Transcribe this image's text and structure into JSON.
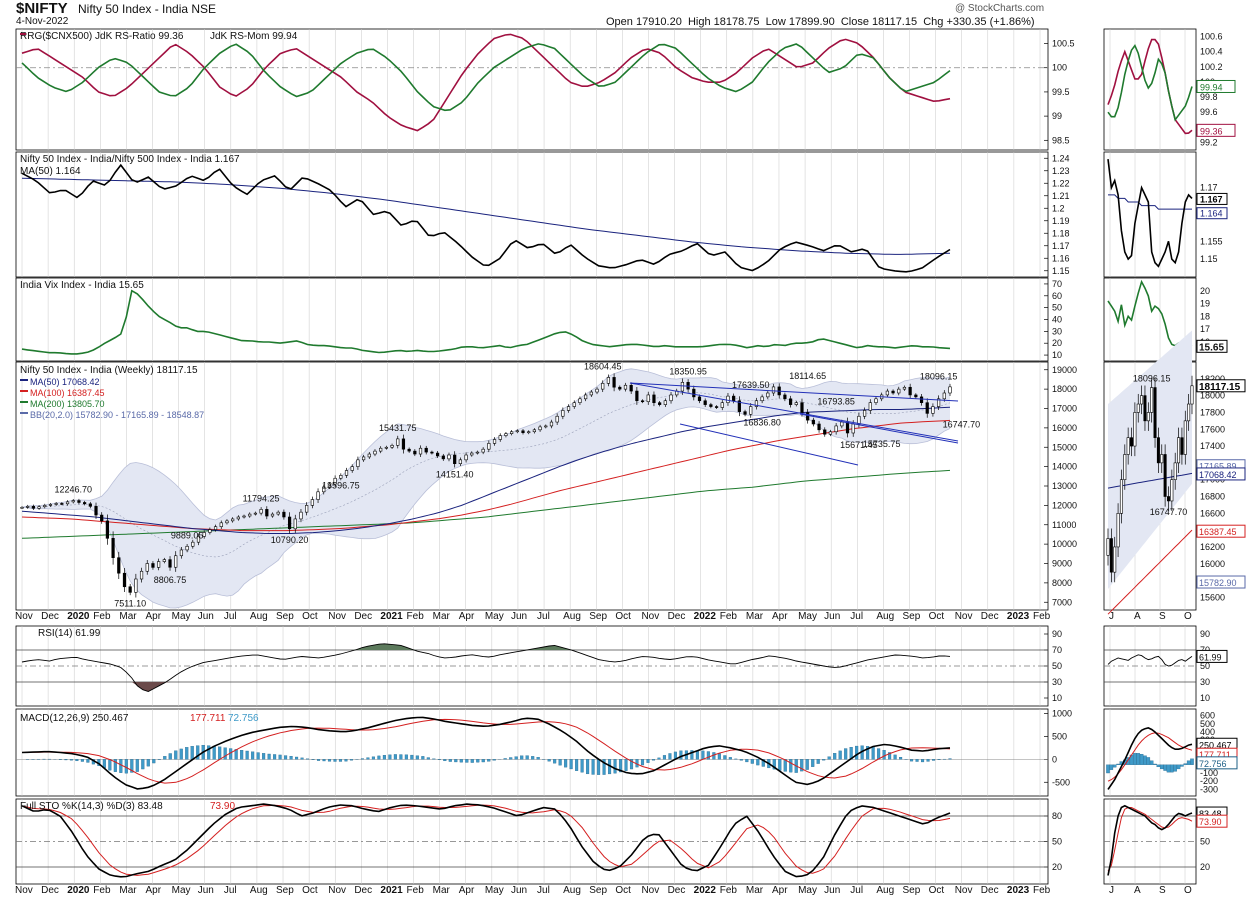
{
  "header": {
    "symbol": "$NIFTY",
    "name": "Nifty 50 Index - India NSE",
    "date": "4-Nov-2022",
    "watermark": "@ StockCharts.com",
    "ohlc": "Open 17910.20  High 18178.75  Low 17899.90  Close 18117.15  Chg +330.35 (+1.86%)"
  },
  "colors": {
    "green": "#1f7a2e",
    "crimson": "#a01040",
    "navy": "#1a237e",
    "red": "#d42020",
    "black": "#000000",
    "bb_fill": "#e3e7f3",
    "bb_line": "#b9bfd8",
    "hist": "#3f9ac8",
    "rsi_fill": "#5c7a5c",
    "rsi_low": "#6b4a4a",
    "grid": "#c8c8c8"
  },
  "chart_data": [
    {
      "type": "line",
      "panel": "rrg",
      "legend": [
        "RRG($CNX500) JdK RS-Ratio 99.36",
        "JdK RS-Mom 99.94"
      ],
      "series": [
        {
          "name": "JdK RS-Ratio",
          "last": 99.36,
          "values": [
            100.3,
            100.4,
            100.2,
            100.0,
            99.8,
            99.5,
            99.4,
            99.6,
            99.9,
            100.2,
            100.5,
            100.3,
            100.0,
            99.6,
            99.4,
            99.6,
            100.0,
            100.3,
            100.4,
            100.2,
            100.0,
            99.8,
            99.5,
            99.3,
            99.0,
            98.8,
            98.7,
            98.9,
            99.4,
            99.9,
            100.3,
            100.6,
            100.7,
            100.6,
            100.3,
            100.0,
            99.7,
            99.6,
            99.7,
            99.9,
            100.2,
            100.4,
            100.3,
            100.0,
            99.8,
            99.7,
            99.7,
            99.9,
            100.2,
            100.4,
            100.2,
            100.0,
            100.1,
            100.4,
            100.6,
            100.5,
            100.2,
            99.8,
            99.5,
            99.4,
            99.3,
            99.36
          ]
        },
        {
          "name": "JdK RS-Mom",
          "last": 99.94,
          "values": [
            100.1,
            99.8,
            99.6,
            99.5,
            99.7,
            100.0,
            100.2,
            100.1,
            99.8,
            99.5,
            99.4,
            99.6,
            100.0,
            100.3,
            100.5,
            100.3,
            99.9,
            99.6,
            99.4,
            99.5,
            99.8,
            100.1,
            100.3,
            100.4,
            100.2,
            99.9,
            99.5,
            99.2,
            99.1,
            99.3,
            99.7,
            100.0,
            100.2,
            100.4,
            100.5,
            100.4,
            100.1,
            99.8,
            99.6,
            99.7,
            100.0,
            100.3,
            100.5,
            100.4,
            100.1,
            99.8,
            99.6,
            99.5,
            99.7,
            100.1,
            100.4,
            100.5,
            100.2,
            99.9,
            100.0,
            100.3,
            100.2,
            99.8,
            99.5,
            99.6,
            99.7,
            99.94
          ]
        }
      ],
      "ticks": [
        100.5,
        100.0,
        99.5,
        99.0,
        98.5
      ],
      "ylim": [
        98.3,
        100.8
      ]
    },
    {
      "type": "line",
      "panel": "relative_strength",
      "legend": [
        "Nifty 50 Index - India/Nifty 500 Index - India 1.167",
        "MA(50) 1.164"
      ],
      "series": [
        {
          "name": "Nifty 50 Index - India/Nifty 500 Index - India",
          "last": 1.167,
          "values": [
            1.228,
            1.222,
            1.212,
            1.215,
            1.208,
            1.222,
            1.218,
            1.235,
            1.22,
            1.225,
            1.215,
            1.218,
            1.226,
            1.222,
            1.232,
            1.218,
            1.211,
            1.222,
            1.226,
            1.214,
            1.225,
            1.22,
            1.214,
            1.201,
            1.208,
            1.195,
            1.198,
            1.186,
            1.191,
            1.177,
            1.181,
            1.172,
            1.161,
            1.153,
            1.16,
            1.175,
            1.168,
            1.172,
            1.163,
            1.171,
            1.161,
            1.154,
            1.152,
            1.155,
            1.159,
            1.155,
            1.163,
            1.166,
            1.172,
            1.162,
            1.165,
            1.153,
            1.15,
            1.157,
            1.168,
            1.173,
            1.17,
            1.166,
            1.171,
            1.165,
            1.168,
            1.152,
            1.15,
            1.149,
            1.152,
            1.16,
            1.167
          ]
        },
        {
          "name": "MA(50)",
          "last": 1.164,
          "values": [
            1.224,
            1.223,
            1.222,
            1.221,
            1.219,
            1.216,
            1.212,
            1.207,
            1.201,
            1.195,
            1.189,
            1.183,
            1.178,
            1.173,
            1.169,
            1.166,
            1.164,
            1.163,
            1.164
          ]
        }
      ],
      "ticks": [
        1.24,
        1.23,
        1.22,
        1.21,
        1.2,
        1.19,
        1.18,
        1.17,
        1.16,
        1.15
      ],
      "ylim": [
        1.145,
        1.245
      ]
    },
    {
      "type": "line",
      "panel": "vix",
      "legend": [
        "India Vix Index - India 15.65"
      ],
      "series": [
        {
          "name": "India Vix Index - India",
          "last": 15.65,
          "values": [
            15,
            14,
            13,
            12,
            12,
            11,
            11,
            12,
            15,
            20,
            24,
            29,
            66,
            58,
            49,
            42,
            38,
            33,
            33,
            30,
            30,
            28,
            26,
            24,
            22,
            22,
            21,
            21,
            20,
            21,
            22,
            19,
            18,
            18,
            17,
            16,
            16,
            14,
            13,
            12,
            13,
            14,
            13,
            14,
            13,
            13,
            14,
            15,
            17,
            17,
            16,
            17,
            18,
            16,
            18,
            19,
            22,
            25,
            28,
            30,
            27,
            22,
            19,
            18,
            17,
            18,
            19,
            19,
            18,
            17,
            18,
            17,
            17,
            17,
            17,
            18,
            19,
            19,
            18,
            16,
            18,
            17,
            19,
            18,
            20,
            20,
            21,
            24,
            22,
            20,
            18,
            16,
            18,
            17,
            17,
            16,
            17,
            18,
            17,
            17,
            16,
            15.65
          ]
        }
      ],
      "ticks": [
        70,
        60,
        50,
        40,
        30,
        20,
        10
      ],
      "ylim": [
        5,
        75
      ]
    },
    {
      "type": "candlestick",
      "panel": "price",
      "legend": [
        "Nifty 50 Index - India (Weekly) 18117.15",
        "MA(50) 17068.42",
        "MA(100) 16387.45",
        "MA(200) 13805.70",
        "BB(20,2.0) 15782.90 - 17165.89 - 18548.87"
      ],
      "closes": [
        11900,
        11950,
        11850,
        11930,
        12000,
        12050,
        12100,
        12080,
        12180,
        12246.7,
        12150,
        12080,
        11950,
        11500,
        11200,
        10300,
        9300,
        8500,
        7800,
        7511.1,
        8200,
        8600,
        9000,
        8800,
        9100,
        9200,
        8806.75,
        9400,
        9700,
        9889.05,
        10100,
        10400,
        10600,
        10750,
        10900,
        11100,
        11200,
        11300,
        11400,
        11450,
        11550,
        11600,
        11794.25,
        11450,
        11550,
        11650,
        11400,
        10790.2,
        11300,
        11650,
        12000,
        12300,
        12700,
        12950,
        13100,
        13400,
        13550,
        13800,
        14000,
        14350,
        14500,
        14650,
        14800,
        14950,
        15000,
        15100,
        15431.75,
        14900,
        14800,
        14650,
        14950,
        14750,
        14700,
        14550,
        14400,
        14600,
        14151.4,
        14350,
        14600,
        14700,
        14750,
        14900,
        15200,
        15400,
        15600,
        15700,
        15800,
        15850,
        15750,
        15800,
        15900,
        16050,
        16100,
        16300,
        16600,
        16900,
        17100,
        17300,
        17500,
        17700,
        17850,
        18000,
        18300,
        18604.45,
        18100,
        18000,
        18200,
        17900,
        17400,
        17350,
        17700,
        17300,
        17200,
        17400,
        17700,
        17900,
        18350.95,
        18000,
        17600,
        17400,
        17200,
        17100,
        17050,
        17300,
        17639.5,
        17400,
        16836.8,
        16700,
        17100,
        17400,
        17600,
        17800,
        18114.65,
        17700,
        17500,
        17200,
        17300,
        16793.85,
        16400,
        16200,
        15900,
        15671.45,
        15800,
        16100,
        16300,
        15735.75,
        16200,
        16600,
        16900,
        17300,
        17500,
        17700,
        17900,
        17800,
        18000,
        18096.15,
        17700,
        17600,
        17300,
        16747.7,
        17100,
        17500,
        17800,
        18117.15
      ],
      "labels": [
        "12246.70",
        "7511.10",
        "8806.75",
        "9889.05",
        "11794.25",
        "10790.20",
        "13596.75",
        "15431.75",
        "14151.40",
        "18604.45",
        "17639.50",
        "18350.95",
        "16836.80",
        "18114.65",
        "16793.85",
        "15671.45",
        "15735.75",
        "18096.15",
        "16747.70"
      ],
      "ma50": {
        "name": "MA(50)",
        "last": 17068.42
      },
      "ma100": {
        "name": "MA(100)",
        "last": 16387.45
      },
      "ma200": {
        "name": "MA(200)",
        "last": 13805.7
      },
      "bb": {
        "name": "BB(20,2.0)",
        "lower": 15782.9,
        "mid": 17165.89,
        "upper": 18548.87
      },
      "ticks": [
        19000,
        18000,
        17000,
        16000,
        15000,
        14000,
        13000,
        12000,
        11000,
        10000,
        9000,
        8000,
        7000
      ],
      "ylim": [
        6600,
        19400
      ]
    },
    {
      "type": "line",
      "panel": "rsi",
      "legend": [
        "RSI(14) 61.99"
      ],
      "series": [
        {
          "name": "RSI(14)",
          "last": 61.99
        }
      ],
      "ticks": [
        90,
        70,
        50,
        30,
        10
      ],
      "levels": [
        70,
        50,
        30
      ],
      "ylim": [
        0,
        100
      ]
    },
    {
      "type": "line",
      "panel": "macd",
      "legend": [
        "MACD(12,26,9) 250.467",
        "177.711",
        "72.756"
      ],
      "series": [
        {
          "name": "MACD",
          "last": 250.467
        },
        {
          "name": "Signal",
          "last": 177.711
        },
        {
          "name": "Histogram",
          "last": 72.756
        }
      ],
      "ticks": [
        1000,
        500,
        0,
        -500
      ],
      "ylim": [
        -800,
        1100
      ]
    },
    {
      "type": "line",
      "panel": "sto",
      "legend": [
        "Full STO %K(14,3) %D(3) 83.48",
        "73.90"
      ],
      "series": [
        {
          "name": "%K",
          "last": 83.48
        },
        {
          "name": "%D",
          "last": 73.9
        }
      ],
      "ticks": [
        80,
        50,
        20
      ],
      "levels": [
        80,
        50,
        20
      ],
      "ylim": [
        0,
        100
      ]
    }
  ],
  "time_axis": {
    "labels": [
      {
        "t": "Nov",
        "b": false
      },
      {
        "t": "Dec",
        "b": false
      },
      {
        "t": "2020",
        "b": true
      },
      {
        "t": "Feb",
        "b": false
      },
      {
        "t": "Mar",
        "b": false
      },
      {
        "t": "Apr",
        "b": false
      },
      {
        "t": "May",
        "b": false
      },
      {
        "t": "Jun",
        "b": false
      },
      {
        "t": "Jul",
        "b": false
      },
      {
        "t": "Aug",
        "b": false
      },
      {
        "t": "Sep",
        "b": false
      },
      {
        "t": "Oct",
        "b": false
      },
      {
        "t": "Nov",
        "b": false
      },
      {
        "t": "Dec",
        "b": false
      },
      {
        "t": "2021",
        "b": true
      },
      {
        "t": "Feb",
        "b": false
      },
      {
        "t": "Mar",
        "b": false
      },
      {
        "t": "Apr",
        "b": false
      },
      {
        "t": "May",
        "b": false
      },
      {
        "t": "Jun",
        "b": false
      },
      {
        "t": "Jul",
        "b": false
      },
      {
        "t": "Aug",
        "b": false
      },
      {
        "t": "Sep",
        "b": false
      },
      {
        "t": "Oct",
        "b": false
      },
      {
        "t": "Nov",
        "b": false
      },
      {
        "t": "Dec",
        "b": false
      },
      {
        "t": "2022",
        "b": true
      },
      {
        "t": "Feb",
        "b": false
      },
      {
        "t": "Mar",
        "b": false
      },
      {
        "t": "Apr",
        "b": false
      },
      {
        "t": "May",
        "b": false
      },
      {
        "t": "Jun",
        "b": false
      },
      {
        "t": "Jul",
        "b": false
      },
      {
        "t": "Aug",
        "b": false
      },
      {
        "t": "Sep",
        "b": false
      },
      {
        "t": "Oct",
        "b": false
      },
      {
        "t": "Nov",
        "b": false
      },
      {
        "t": "Dec",
        "b": false
      },
      {
        "t": "2023",
        "b": true
      },
      {
        "t": "Feb",
        "b": false
      }
    ],
    "zoom_labels": [
      "J",
      "A",
      "S",
      "O"
    ]
  },
  "zoom": {
    "rrg": {
      "ticks": [
        100.6,
        100.4,
        100.2,
        100.0,
        99.8,
        99.6,
        99.4,
        99.2
      ],
      "values": [
        "99.94",
        "99.36"
      ]
    },
    "rs": {
      "ticks": [
        1.17,
        1.155,
        1.15
      ],
      "values": [
        "1.167",
        "1.164"
      ]
    },
    "vix": {
      "ticks": [
        20,
        19,
        18,
        17,
        16
      ],
      "values": [
        "15.65"
      ]
    },
    "price": {
      "ticks": [
        18200,
        18000,
        17800,
        17600,
        17400,
        17200,
        17000,
        16800,
        16600,
        16400,
        16200,
        16000,
        15800,
        15600
      ],
      "values": [
        "18117.15",
        "17165.89",
        "17068.42",
        "16387.45",
        "15782.90"
      ],
      "labels": [
        "18096.15",
        "16747.70"
      ]
    },
    "rsi": {
      "ticks": [
        90,
        70,
        50,
        30,
        10
      ],
      "values": [
        "61.99"
      ]
    },
    "macd": {
      "ticks": [
        600,
        500,
        400,
        300,
        200,
        100,
        0,
        -100,
        -200,
        -300
      ],
      "values": [
        "250.467",
        "177.711",
        "72.756"
      ]
    },
    "sto": {
      "ticks": [
        80,
        50,
        20
      ],
      "values": [
        "83.48",
        "73.90"
      ]
    }
  }
}
